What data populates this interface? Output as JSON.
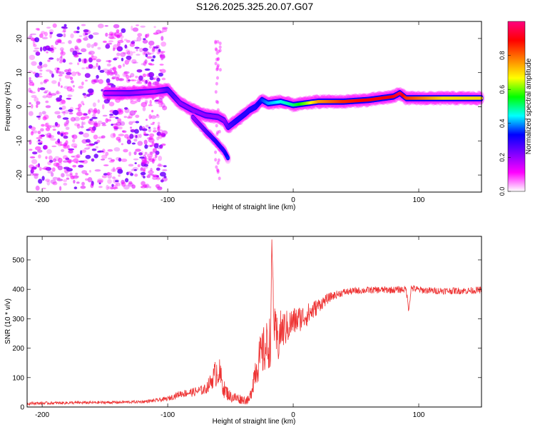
{
  "title": "S126.2025.325.20.07.G07",
  "chart_data": [
    {
      "type": "heatmap",
      "name": "spectrogram",
      "xlabel": "Height of straight line (km)",
      "ylabel": "Frequency (Hz)",
      "xlim": [
        -212,
        150
      ],
      "ylim": [
        -25,
        25
      ],
      "xticks": [
        -200,
        -100,
        0,
        100
      ],
      "yticks": [
        -20,
        -10,
        0,
        10,
        20
      ],
      "colorbar": {
        "label": "Normalized spectral amplitude",
        "range": [
          0,
          1
        ],
        "ticks": [
          0.0,
          0.2,
          0.4,
          0.6,
          0.8
        ],
        "tick_labels": [
          "0.0",
          "0.2",
          "0.4",
          "0.6",
          "0.8"
        ],
        "colors": [
          "#ffffff",
          "#ff00ff",
          "#8000ff",
          "#0000ff",
          "#00ffff",
          "#00ff00",
          "#ffff00",
          "#ff8000",
          "#ff0000",
          "#ff0080"
        ]
      },
      "noise_region": {
        "x": [
          -210,
          -102
        ],
        "y": [
          -24,
          24
        ],
        "amplitude": [
          0.05,
          0.2
        ]
      },
      "ridge": {
        "x": [
          -150,
          -130,
          -110,
          -100,
          -95,
          -90,
          -80,
          -70,
          -60,
          -55,
          -52,
          -45,
          -38,
          -35,
          -30,
          -25,
          -20,
          -10,
          0,
          10,
          20,
          40,
          60,
          80,
          85,
          90,
          100,
          110,
          120,
          130,
          140,
          150
        ],
        "y": [
          4,
          4,
          4.5,
          5,
          3,
          1,
          -1,
          -2.5,
          -3,
          -4,
          -6,
          -4,
          -2,
          -1,
          0,
          2,
          1,
          1.5,
          0.5,
          1,
          1.5,
          1.5,
          2,
          3,
          4,
          2.5,
          2.5,
          2.5,
          2.5,
          2.5,
          2.5,
          2.5
        ],
        "amplitude": [
          0.15,
          0.2,
          0.15,
          0.25,
          0.25,
          0.2,
          0.2,
          0.2,
          0.2,
          0.2,
          0.25,
          0.3,
          0.3,
          0.3,
          0.3,
          0.35,
          0.4,
          0.45,
          0.5,
          0.6,
          0.75,
          0.85,
          0.9,
          0.9,
          0.95,
          0.85,
          0.8,
          0.75,
          0.7,
          0.7,
          0.7,
          0.7
        ]
      },
      "branch": {
        "x": [
          -80,
          -70,
          -62,
          -55,
          -52
        ],
        "y": [
          -3,
          -7,
          -10,
          -13,
          -15
        ],
        "amplitude": [
          0.2,
          0.25,
          0.3,
          0.3,
          0.35
        ]
      },
      "scatter_column": {
        "x": [
          -62,
          -58
        ],
        "y": [
          -22,
          20
        ],
        "amplitude": 0.05
      }
    },
    {
      "type": "line",
      "name": "snr",
      "xlabel": "Height of straight line (km)",
      "ylabel": "SNR (10 * v/v)",
      "xlim": [
        -212,
        150
      ],
      "ylim": [
        0,
        580
      ],
      "xticks": [
        -200,
        -100,
        0,
        100
      ],
      "yticks": [
        0,
        100,
        200,
        300,
        400,
        500
      ],
      "color": "#ee3333",
      "series": [
        {
          "name": "SNR",
          "x": [
            -212,
            -200,
            -180,
            -160,
            -140,
            -120,
            -110,
            -100,
            -90,
            -80,
            -70,
            -65,
            -60,
            -55,
            -50,
            -45,
            -40,
            -35,
            -30,
            -25,
            -22,
            -20,
            -18,
            -17,
            -15,
            -12,
            -10,
            -5,
            0,
            5,
            10,
            15,
            20,
            25,
            30,
            40,
            50,
            60,
            70,
            80,
            90,
            92,
            94,
            100,
            110,
            120,
            130,
            140,
            150
          ],
          "y": [
            12,
            13,
            14,
            15,
            16,
            18,
            22,
            28,
            45,
            50,
            60,
            90,
            130,
            60,
            35,
            30,
            25,
            22,
            130,
            180,
            200,
            210,
            230,
            560,
            250,
            220,
            260,
            270,
            290,
            300,
            310,
            325,
            345,
            360,
            375,
            390,
            395,
            397,
            398,
            398,
            400,
            330,
            405,
            398,
            395,
            395,
            395,
            395,
            398
          ],
          "noise": [
            5,
            5,
            5,
            5,
            5,
            5,
            6,
            8,
            12,
            15,
            18,
            30,
            60,
            30,
            20,
            20,
            15,
            15,
            60,
            80,
            90,
            90,
            90,
            20,
            90,
            80,
            70,
            60,
            50,
            45,
            40,
            35,
            25,
            20,
            15,
            12,
            12,
            12,
            12,
            12,
            12,
            10,
            12,
            12,
            12,
            12,
            12,
            12,
            12
          ]
        }
      ]
    }
  ]
}
